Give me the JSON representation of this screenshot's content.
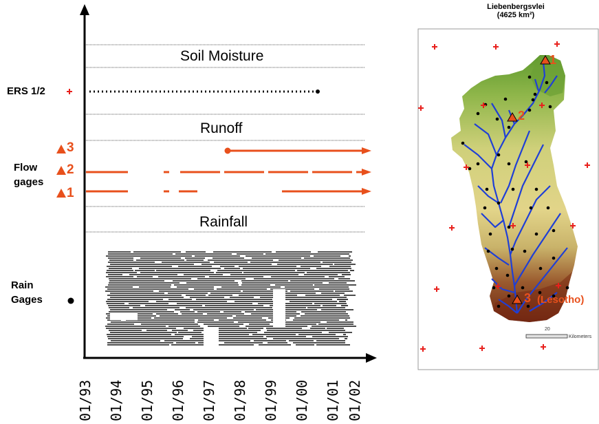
{
  "timeline": {
    "sections": {
      "soil_moisture": "Soil Moisture",
      "runoff": "Runoff",
      "rainfall": "Rainfall"
    },
    "rows": {
      "ers": "ERS 1/2",
      "flow_gages": "Flow\ngages",
      "rain_gages": "Rain\nGages"
    },
    "gage_numbers": [
      "3",
      "2",
      "1"
    ],
    "x_ticks": [
      "01/93",
      "01/94",
      "01/95",
      "01/96",
      "01/97",
      "01/98",
      "01/99",
      "01/00",
      "01/01",
      "01/02"
    ]
  },
  "map": {
    "title_line1": "Liebenbergsvlei",
    "title_line2": "(4625 km²)",
    "gage_labels": [
      "1",
      "2",
      "3"
    ],
    "lesotho_label": "(Lesotho)",
    "scale_value": "20",
    "scale_unit": "Kilometers"
  },
  "colors": {
    "accent": "#e8501c",
    "river": "#1f3fd6",
    "terrain_low": "#5f9a2e",
    "terrain_mid": "#e0d07a",
    "terrain_high": "#7a2a12"
  }
}
